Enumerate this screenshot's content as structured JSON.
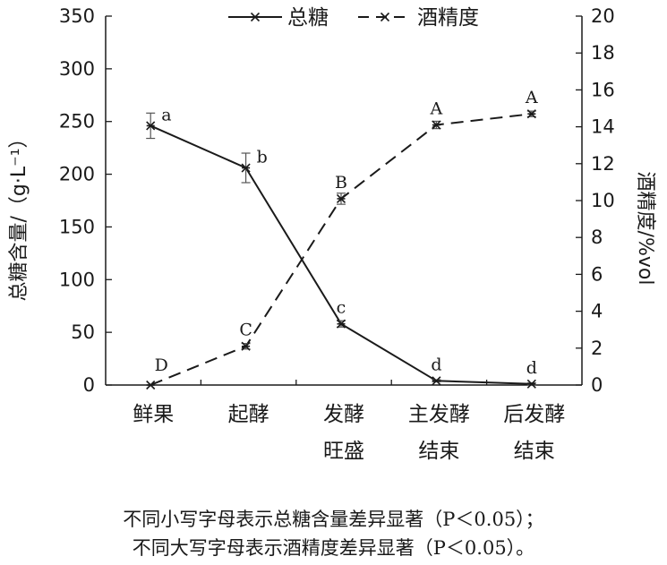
{
  "chart_data": {
    "type": "line",
    "categories": [
      [
        "鲜果"
      ],
      [
        "起酵"
      ],
      [
        "发酵",
        "旺盛"
      ],
      [
        "主发酵",
        "结束"
      ],
      [
        "后发酵",
        "结束"
      ]
    ],
    "y_left": {
      "label": "总糖含量/（g·L⁻¹）",
      "range": [
        0,
        350
      ],
      "ticks": [
        0,
        50,
        100,
        150,
        200,
        250,
        300,
        350
      ]
    },
    "y_right": {
      "label": "酒精度/%vol",
      "range": [
        0,
        20
      ],
      "ticks": [
        0,
        2,
        4,
        6,
        8,
        10,
        12,
        14,
        16,
        18,
        20
      ]
    },
    "series": [
      {
        "name": "总糖",
        "axis": "left",
        "style": "solid",
        "values": [
          246,
          206,
          58,
          4,
          1
        ],
        "error": [
          12,
          14,
          3,
          1,
          1
        ],
        "labels": [
          "a",
          "b",
          "c",
          "d",
          "d"
        ]
      },
      {
        "name": "酒精度",
        "axis": "right",
        "style": "dashed",
        "values": [
          0,
          2.1,
          10.1,
          14.1,
          14.7
        ],
        "error": [
          0,
          0.15,
          0.3,
          0.2,
          0.15
        ],
        "labels": [
          "D",
          "C",
          "B",
          "A",
          "A"
        ]
      }
    ],
    "legend": "top-center"
  },
  "caption": {
    "line1": "不同小写字母表示总糖含量差异显著（P＜0.05）；",
    "line2": "不同大写字母表示酒精度差异显著（P＜0.05）。"
  },
  "colors": {
    "line": "#1a1a1a"
  }
}
